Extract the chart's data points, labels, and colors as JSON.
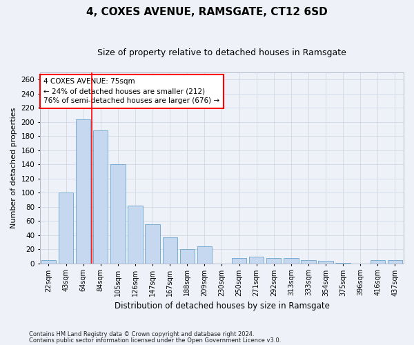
{
  "title": "4, COXES AVENUE, RAMSGATE, CT12 6SD",
  "subtitle": "Size of property relative to detached houses in Ramsgate",
  "xlabel": "Distribution of detached houses by size in Ramsgate",
  "ylabel": "Number of detached properties",
  "categories": [
    "22sqm",
    "43sqm",
    "64sqm",
    "84sqm",
    "105sqm",
    "126sqm",
    "147sqm",
    "167sqm",
    "188sqm",
    "209sqm",
    "230sqm",
    "250sqm",
    "271sqm",
    "292sqm",
    "313sqm",
    "333sqm",
    "354sqm",
    "375sqm",
    "396sqm",
    "416sqm",
    "437sqm"
  ],
  "values": [
    5,
    100,
    204,
    188,
    140,
    82,
    55,
    37,
    20,
    24,
    0,
    7,
    9,
    7,
    7,
    5,
    4,
    1,
    0,
    5,
    5
  ],
  "bar_color": "#c5d8f0",
  "bar_edge_color": "#7aadd4",
  "grid_color": "#d0d8e8",
  "background_color": "#eef2f8",
  "vline_x_index": 2,
  "vline_color": "red",
  "annotation_text": "4 COXES AVENUE: 75sqm\n← 24% of detached houses are smaller (212)\n76% of semi-detached houses are larger (676) →",
  "annotation_box_color": "white",
  "annotation_box_edge": "red",
  "footer1": "Contains HM Land Registry data © Crown copyright and database right 2024.",
  "footer2": "Contains public sector information licensed under the Open Government Licence v3.0.",
  "ylim": [
    0,
    270
  ],
  "yticks": [
    0,
    20,
    40,
    60,
    80,
    100,
    120,
    140,
    160,
    180,
    200,
    220,
    240,
    260
  ]
}
